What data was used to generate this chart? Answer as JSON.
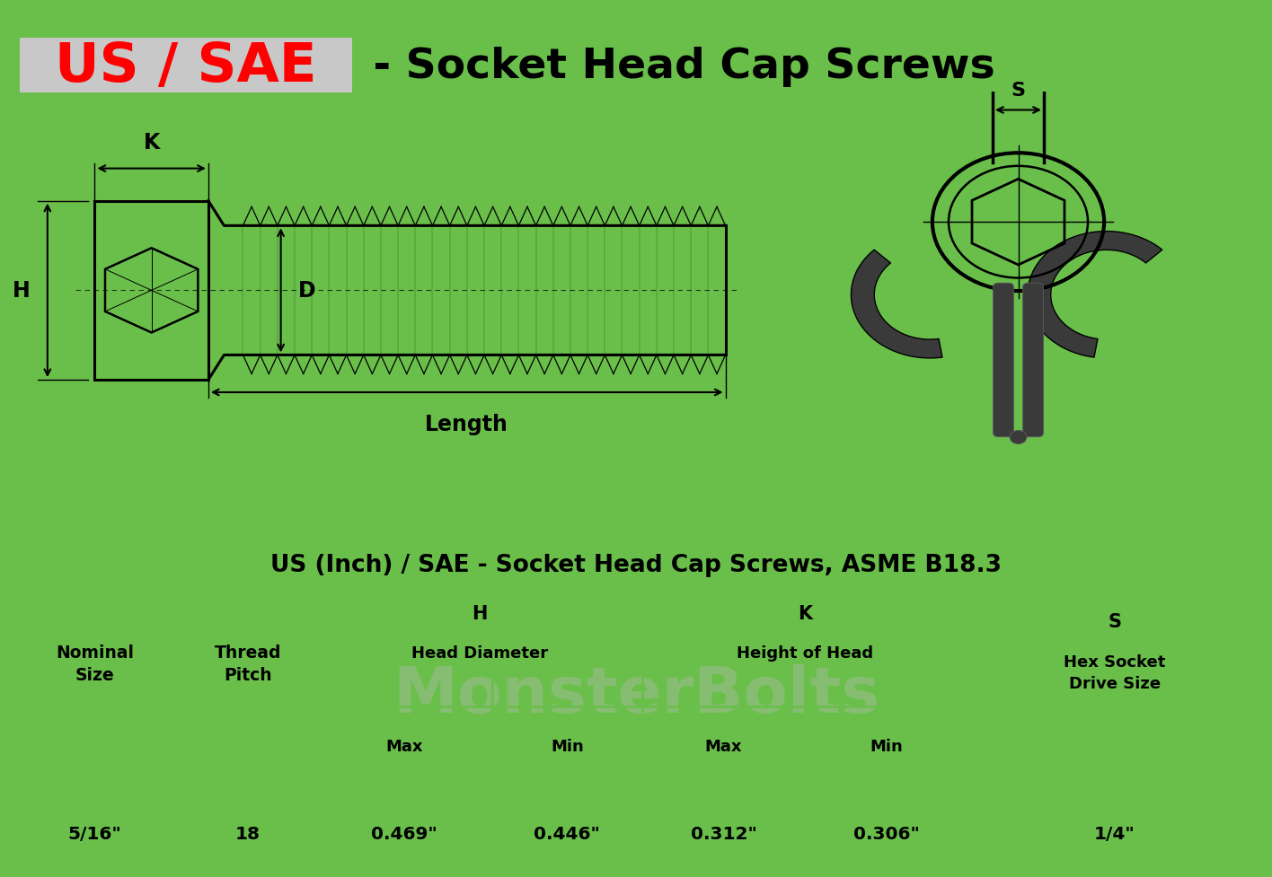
{
  "title_red": "US / SAE",
  "title_black": " - Socket Head Cap Screws",
  "table_title": "US (Inch) / SAE - Socket Head Cap Screws, ASME B18.3",
  "green_color": "#6abf4b",
  "gray_bg": "#c8c8c8",
  "bg_color": "#ffffff",
  "dark_color": "#1a1a1a",
  "col_divs": [
    0.0,
    0.135,
    0.245,
    0.385,
    0.505,
    0.635,
    0.765,
    1.0
  ],
  "data_row": [
    "5/16\"",
    "18",
    "0.469\"",
    "0.446\"",
    "0.312\"",
    "0.306\"",
    "1/4\""
  ],
  "watermark": "MonsterBolts"
}
